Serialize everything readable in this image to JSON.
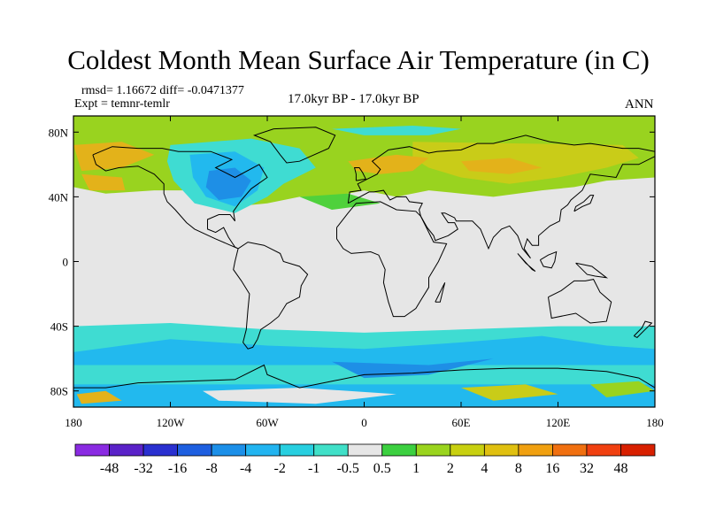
{
  "title": "Coldest Month Mean Surface Air Temperature (in C)",
  "stats_line": "rmsd= 1.16672  diff= -0.0471377",
  "expt_line": "Expt = temnr-temlr",
  "period": "17.0kyr BP - 17.0kyr BP",
  "season": "ANN",
  "lat_ticks": [
    "80N",
    "40N",
    "0",
    "40S",
    "80S"
  ],
  "lon_ticks": [
    "180",
    "120W",
    "60W",
    "0",
    "60E",
    "120E",
    "180"
  ],
  "colorbar": {
    "labels": [
      "-48",
      "-32",
      "-16",
      "-8",
      "-4",
      "-2",
      "-1",
      "-0.5",
      "0.5",
      "1",
      "2",
      "4",
      "8",
      "16",
      "32",
      "48"
    ],
    "colors": [
      "#8a2be2",
      "#5a22c8",
      "#2a30d0",
      "#1e5fe0",
      "#1c8fe8",
      "#22b4f0",
      "#28cfe0",
      "#40e0c8",
      "#e6e6e6",
      "#3cd040",
      "#9ad41e",
      "#c8d010",
      "#e0c010",
      "#f0a010",
      "#f07010",
      "#f04010",
      "#d82000"
    ]
  },
  "map_fields": {
    "neutral": "#e6e6e6",
    "green": "#99d31f",
    "light_green": "#4fd13c",
    "yellow": "#c9cc18",
    "orange": "#e3b21a",
    "cyan": "#3fdcd2",
    "light_blue": "#22b9ee",
    "blue": "#1e8fe6"
  }
}
